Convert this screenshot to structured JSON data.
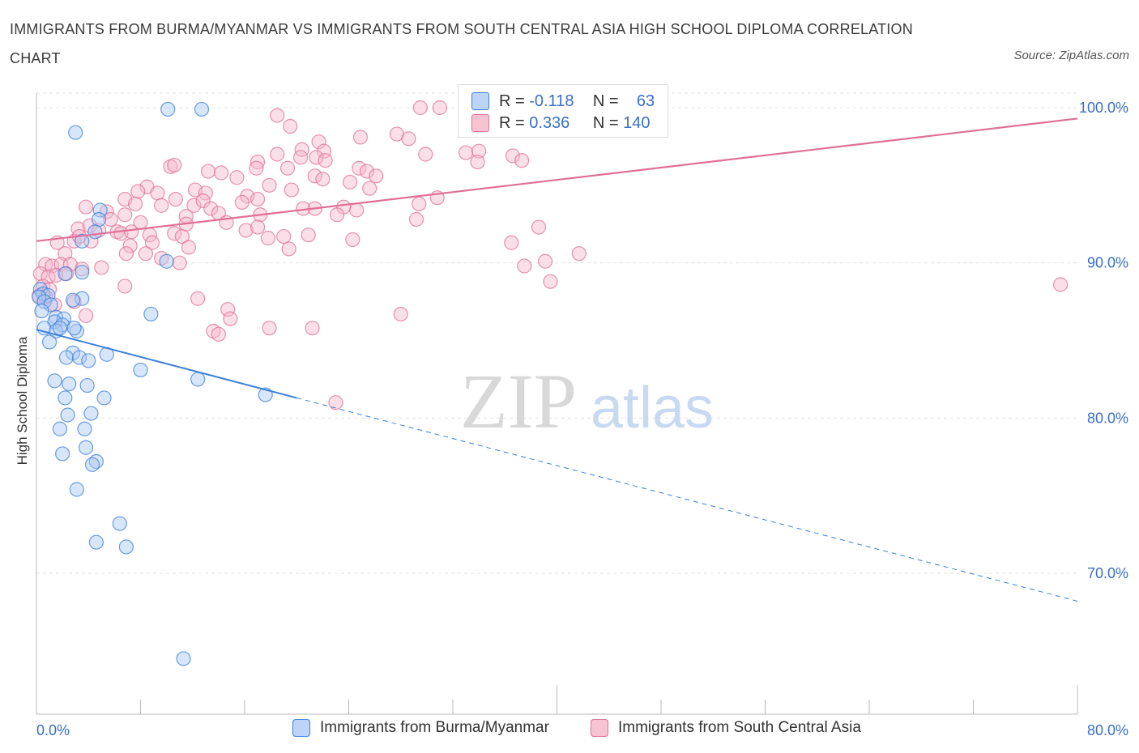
{
  "title": "IMMIGRANTS FROM BURMA/MYANMAR VS IMMIGRANTS FROM SOUTH CENTRAL ASIA HIGH SCHOOL DIPLOMA CORRELATION CHART",
  "source": "Source: ZipAtlas.com",
  "watermark": {
    "zip": "ZIP",
    "atlas": "atlas"
  },
  "stats": [
    {
      "r_label": "R =",
      "r_value": "-0.118",
      "n_label": "N =",
      "n_value": "63"
    },
    {
      "r_label": "R =",
      "r_value": "0.336",
      "n_label": "N =",
      "n_value": "140"
    }
  ],
  "legend": [
    "Immigrants from Burma/Myanmar",
    "Immigrants from South Central Asia"
  ],
  "colors": {
    "blue": "#3b7fd9",
    "blue_fill": "#a9c8f2",
    "pink": "#e06f97",
    "pink_fill": "#f5b8cb",
    "grid": "#e3e3e3",
    "axis_text": "#3a6fc6"
  },
  "chart_data": {
    "type": "scatter",
    "xlabel": "",
    "ylabel": "High School Diploma",
    "x_ticks": [
      "0.0%",
      "80.0%"
    ],
    "y_ticks": [
      "100.0%",
      "90.0%",
      "80.0%",
      "70.0%"
    ],
    "xlim": [
      0,
      80
    ],
    "ylim": [
      62,
      100.5
    ],
    "grid": true,
    "legend_position": "bottom",
    "series": [
      {
        "name": "Immigrants from Burma/Myanmar",
        "color": "blue",
        "trend": {
          "x0": 0,
          "y0": 85.7,
          "x1": 20,
          "y1": 81.3,
          "x_dashed_end": 80,
          "y_dashed_end": 68.2
        },
        "points": [
          [
            10.1,
            99.9
          ],
          [
            12.7,
            99.9
          ],
          [
            3.0,
            98.4
          ],
          [
            4.9,
            93.4
          ],
          [
            4.8,
            92.8
          ],
          [
            4.5,
            92.0
          ],
          [
            3.5,
            91.4
          ],
          [
            10.0,
            90.1
          ],
          [
            3.5,
            89.4
          ],
          [
            2.2,
            89.3
          ],
          [
            0.3,
            88.3
          ],
          [
            0.5,
            88.0
          ],
          [
            0.9,
            87.9
          ],
          [
            0.2,
            87.8
          ],
          [
            0.6,
            87.5
          ],
          [
            1.1,
            87.3
          ],
          [
            3.5,
            87.7
          ],
          [
            2.8,
            87.6
          ],
          [
            0.4,
            86.9
          ],
          [
            1.5,
            86.5
          ],
          [
            2.1,
            86.4
          ],
          [
            8.8,
            86.7
          ],
          [
            1.4,
            86.2
          ],
          [
            2.0,
            86.0
          ],
          [
            0.6,
            85.8
          ],
          [
            1.5,
            85.6
          ],
          [
            3.1,
            85.6
          ],
          [
            1.8,
            85.8
          ],
          [
            2.9,
            85.8
          ],
          [
            1.0,
            84.9
          ],
          [
            2.8,
            84.2
          ],
          [
            2.3,
            83.9
          ],
          [
            3.3,
            83.9
          ],
          [
            4.0,
            83.7
          ],
          [
            5.4,
            84.1
          ],
          [
            8.0,
            83.1
          ],
          [
            1.4,
            82.4
          ],
          [
            2.5,
            82.2
          ],
          [
            3.9,
            82.1
          ],
          [
            12.4,
            82.5
          ],
          [
            17.6,
            81.5
          ],
          [
            5.2,
            81.3
          ],
          [
            2.2,
            81.3
          ],
          [
            2.4,
            80.2
          ],
          [
            4.2,
            80.3
          ],
          [
            1.8,
            79.3
          ],
          [
            3.7,
            79.3
          ],
          [
            2.0,
            77.7
          ],
          [
            3.8,
            78.1
          ],
          [
            4.6,
            77.2
          ],
          [
            4.3,
            77.0
          ],
          [
            3.1,
            75.4
          ],
          [
            6.4,
            73.2
          ],
          [
            4.6,
            72.0
          ],
          [
            6.9,
            71.7
          ],
          [
            11.3,
            64.5
          ]
        ]
      },
      {
        "name": "Immigrants from South Central Asia",
        "color": "pink",
        "trend": {
          "x0": 0,
          "y0": 91.4,
          "x1": 80,
          "y1": 99.3
        },
        "points": [
          [
            29.5,
            100.0
          ],
          [
            31.0,
            100.0
          ],
          [
            18.5,
            99.5
          ],
          [
            33.2,
            99.2
          ],
          [
            19.5,
            98.8
          ],
          [
            24.9,
            98.1
          ],
          [
            27.7,
            98.3
          ],
          [
            28.6,
            98.0
          ],
          [
            21.7,
            97.8
          ],
          [
            20.4,
            97.3
          ],
          [
            22.1,
            97.2
          ],
          [
            18.5,
            97.0
          ],
          [
            20.3,
            96.8
          ],
          [
            21.5,
            96.8
          ],
          [
            22.2,
            96.6
          ],
          [
            29.9,
            97.0
          ],
          [
            33.0,
            97.1
          ],
          [
            34.0,
            97.2
          ],
          [
            33.9,
            96.5
          ],
          [
            36.6,
            96.9
          ],
          [
            37.3,
            96.6
          ],
          [
            17.0,
            96.5
          ],
          [
            16.9,
            96.1
          ],
          [
            19.3,
            96.1
          ],
          [
            10.3,
            96.2
          ],
          [
            10.6,
            96.3
          ],
          [
            13.2,
            95.9
          ],
          [
            14.2,
            95.8
          ],
          [
            24.8,
            96.1
          ],
          [
            25.4,
            95.9
          ],
          [
            26.1,
            95.6
          ],
          [
            21.4,
            95.6
          ],
          [
            22.0,
            95.4
          ],
          [
            17.9,
            95.0
          ],
          [
            15.4,
            95.5
          ],
          [
            25.6,
            94.8
          ],
          [
            8.5,
            94.9
          ],
          [
            9.3,
            94.5
          ],
          [
            7.8,
            94.6
          ],
          [
            12.2,
            94.7
          ],
          [
            13.0,
            94.5
          ],
          [
            19.6,
            94.7
          ],
          [
            24.1,
            95.2
          ],
          [
            6.8,
            94.1
          ],
          [
            10.7,
            94.1
          ],
          [
            9.6,
            93.7
          ],
          [
            7.6,
            93.8
          ],
          [
            16.2,
            94.3
          ],
          [
            15.8,
            93.9
          ],
          [
            24.6,
            93.4
          ],
          [
            23.6,
            93.6
          ],
          [
            20.5,
            93.5
          ],
          [
            21.4,
            93.5
          ],
          [
            3.8,
            93.6
          ],
          [
            5.4,
            93.3
          ],
          [
            11.5,
            93.0
          ],
          [
            12.1,
            93.7
          ],
          [
            12.8,
            94.0
          ],
          [
            13.4,
            93.5
          ],
          [
            14.0,
            93.2
          ],
          [
            17.0,
            94.1
          ],
          [
            14.6,
            92.6
          ],
          [
            17.2,
            93.1
          ],
          [
            29.4,
            93.8
          ],
          [
            30.8,
            94.2
          ],
          [
            23.1,
            93.1
          ],
          [
            5.7,
            92.8
          ],
          [
            6.8,
            93.1
          ],
          [
            8.0,
            92.6
          ],
          [
            11.5,
            92.5
          ],
          [
            29.2,
            92.8
          ],
          [
            3.2,
            92.2
          ],
          [
            4.1,
            92.4
          ],
          [
            4.8,
            92.1
          ],
          [
            6.2,
            92.0
          ],
          [
            6.5,
            91.9
          ],
          [
            8.7,
            91.8
          ],
          [
            10.6,
            91.9
          ],
          [
            11.2,
            91.7
          ],
          [
            16.1,
            92.1
          ],
          [
            17.0,
            92.3
          ],
          [
            17.8,
            91.6
          ],
          [
            19.0,
            91.7
          ],
          [
            20.9,
            91.8
          ],
          [
            1.6,
            91.3
          ],
          [
            2.9,
            91.4
          ],
          [
            3.3,
            91.7
          ],
          [
            4.2,
            91.4
          ],
          [
            7.3,
            92.0
          ],
          [
            7.2,
            91.1
          ],
          [
            8.9,
            91.3
          ],
          [
            11.7,
            91.0
          ],
          [
            24.3,
            91.5
          ],
          [
            36.5,
            91.3
          ],
          [
            38.6,
            92.3
          ],
          [
            2.2,
            90.6
          ],
          [
            6.9,
            90.6
          ],
          [
            8.4,
            90.6
          ],
          [
            9.6,
            90.3
          ],
          [
            11.0,
            90.0
          ],
          [
            19.4,
            90.9
          ],
          [
            41.7,
            90.6
          ],
          [
            0.7,
            89.9
          ],
          [
            1.2,
            89.8
          ],
          [
            1.9,
            89.9
          ],
          [
            2.6,
            89.9
          ],
          [
            3.5,
            89.6
          ],
          [
            5.0,
            89.7
          ],
          [
            37.5,
            89.8
          ],
          [
            39.1,
            90.1
          ],
          [
            0.3,
            89.3
          ],
          [
            0.9,
            89.1
          ],
          [
            1.5,
            89.2
          ],
          [
            2.3,
            89.3
          ],
          [
            0.5,
            88.5
          ],
          [
            1.0,
            88.3
          ],
          [
            6.8,
            88.5
          ],
          [
            39.5,
            88.8
          ],
          [
            78.7,
            88.6
          ],
          [
            0.2,
            87.9
          ],
          [
            0.7,
            87.8
          ],
          [
            12.4,
            87.7
          ],
          [
            1.4,
            87.3
          ],
          [
            2.9,
            87.5
          ],
          [
            14.7,
            87.0
          ],
          [
            3.8,
            86.6
          ],
          [
            14.9,
            86.4
          ],
          [
            28.0,
            86.7
          ],
          [
            13.6,
            85.6
          ],
          [
            14.0,
            85.4
          ],
          [
            17.9,
            85.8
          ],
          [
            21.2,
            85.8
          ],
          [
            23.0,
            81.0
          ]
        ]
      }
    ]
  }
}
